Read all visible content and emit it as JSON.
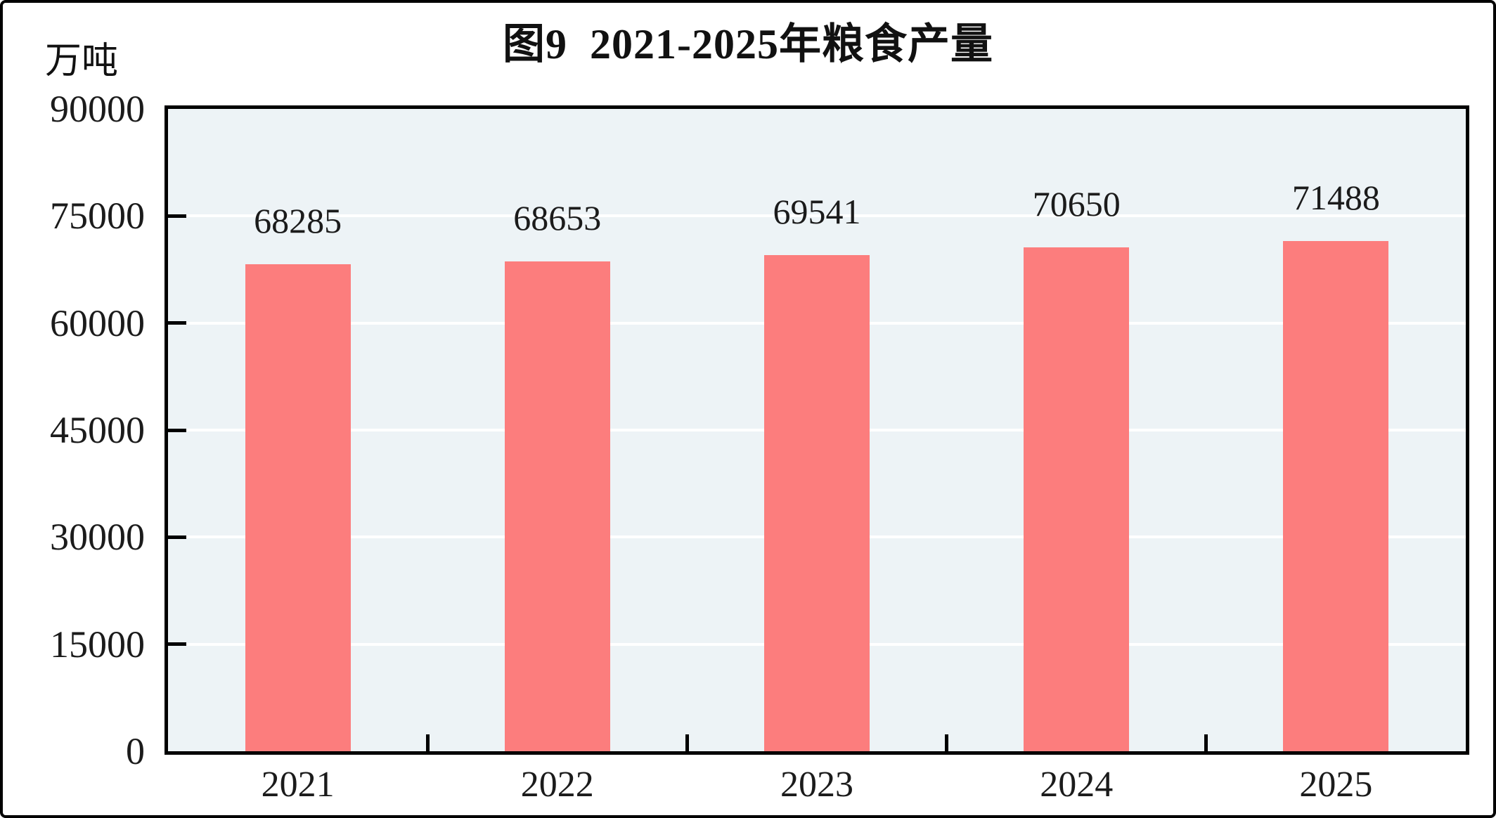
{
  "chart_data": {
    "type": "bar",
    "title": "图9  2021-2025年粮食产量",
    "unit_label": "万吨",
    "categories": [
      "2021",
      "2022",
      "2023",
      "2024",
      "2025"
    ],
    "values": [
      68285,
      68653,
      69541,
      70650,
      71488
    ],
    "yticks": [
      0,
      15000,
      30000,
      45000,
      60000,
      75000,
      90000
    ],
    "ylim": [
      0,
      90000
    ],
    "grid": true,
    "legend_position": "none",
    "colors": {
      "bar": "#FC7D7D",
      "plot_background": "#EDF3F6",
      "gridline": "#FFFFFF",
      "axis": "#000000",
      "text": "#1B1B1B"
    }
  }
}
